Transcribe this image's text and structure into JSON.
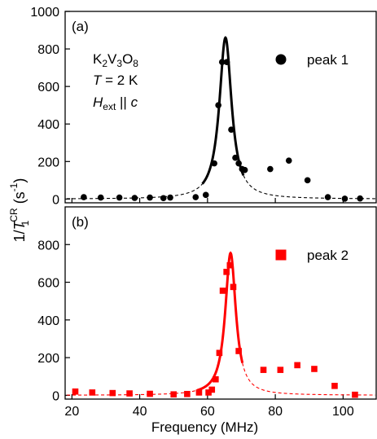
{
  "chart_data": [
    {
      "type": "scatter",
      "panel_label": "(a)",
      "annotation": {
        "compound": "K2V3O8",
        "temperature": "T = 2 K",
        "field": "Hext || c"
      },
      "legend_location": "top-right",
      "xlim": [
        18,
        110
      ],
      "ylim": [
        -20,
        1000
      ],
      "yticks": [
        0,
        200,
        400,
        600,
        800,
        1000
      ],
      "series": [
        {
          "name": "peak 1",
          "marker": "circle",
          "color": "#000000",
          "x": [
            23.5,
            28.5,
            34,
            38.5,
            43,
            47,
            49,
            56.5,
            59.5,
            62,
            63.2,
            64.3,
            65.7,
            67,
            68.2,
            69.2,
            70.2,
            71,
            78.5,
            84,
            89.5,
            95.5,
            100.5,
            105
          ],
          "y": [
            10,
            8,
            8,
            6,
            8,
            5,
            8,
            10,
            22,
            190,
            500,
            730,
            730,
            370,
            220,
            190,
            160,
            155,
            160,
            205,
            100,
            10,
            2,
            3
          ]
        }
      ],
      "fit": {
        "peak_x": 65.3,
        "peak_y": 860,
        "hwhm": 2.2,
        "solid_range": [
          58.5,
          70.6
        ],
        "style": "solid within range, dashed outside",
        "color": "#000000"
      }
    },
    {
      "type": "scatter",
      "panel_label": "(b)",
      "legend_location": "top-right",
      "xlim": [
        18,
        110
      ],
      "ylim": [
        -20,
        1000
      ],
      "yticks": [
        0,
        200,
        400,
        600,
        800
      ],
      "xticks": [
        20,
        40,
        60,
        80,
        100
      ],
      "xlabel": "Frequency (MHz)",
      "series": [
        {
          "name": "peak 2",
          "marker": "square",
          "color": "#ff0000",
          "x": [
            21,
            26,
            32,
            37,
            43,
            50,
            54,
            57.5,
            60.3,
            61.3,
            62.4,
            63.5,
            64.5,
            65.6,
            66.6,
            67.6,
            69.2,
            76.5,
            81.5,
            86.5,
            91.5,
            97.5,
            103.5
          ],
          "y": [
            20,
            15,
            12,
            10,
            8,
            5,
            7,
            15,
            15,
            30,
            85,
            225,
            555,
            655,
            690,
            575,
            235,
            135,
            135,
            160,
            140,
            50,
            3
          ]
        }
      ],
      "fit": {
        "peak_x": 66.8,
        "peak_y": 755,
        "hwhm": 1.9,
        "solid_range": [
          57,
          70.3
        ],
        "style": "solid within range, dashed outside",
        "color": "#ff0000"
      }
    }
  ],
  "y_axis_label": {
    "prefix": "1/",
    "var": "T",
    "sub": "1",
    "sup": "CR",
    "units": " (s",
    "units_sup": "-1",
    "close": ")"
  }
}
